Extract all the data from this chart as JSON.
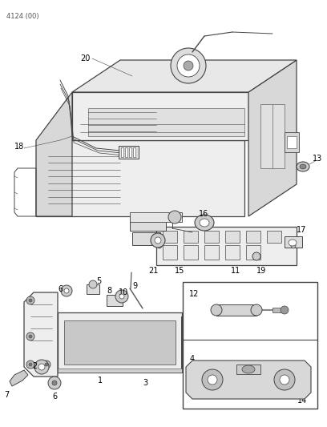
{
  "page_code": "4124 (00)",
  "background_color": "#ffffff",
  "line_color": "#444444",
  "label_color": "#000000",
  "figsize": [
    4.08,
    5.33
  ],
  "dpi": 100,
  "lw": 0.6,
  "lw_thick": 0.9,
  "lw_thin": 0.4,
  "gray_fill": "#d8d8d8",
  "light_fill": "#eeeeee",
  "white": "#ffffff"
}
